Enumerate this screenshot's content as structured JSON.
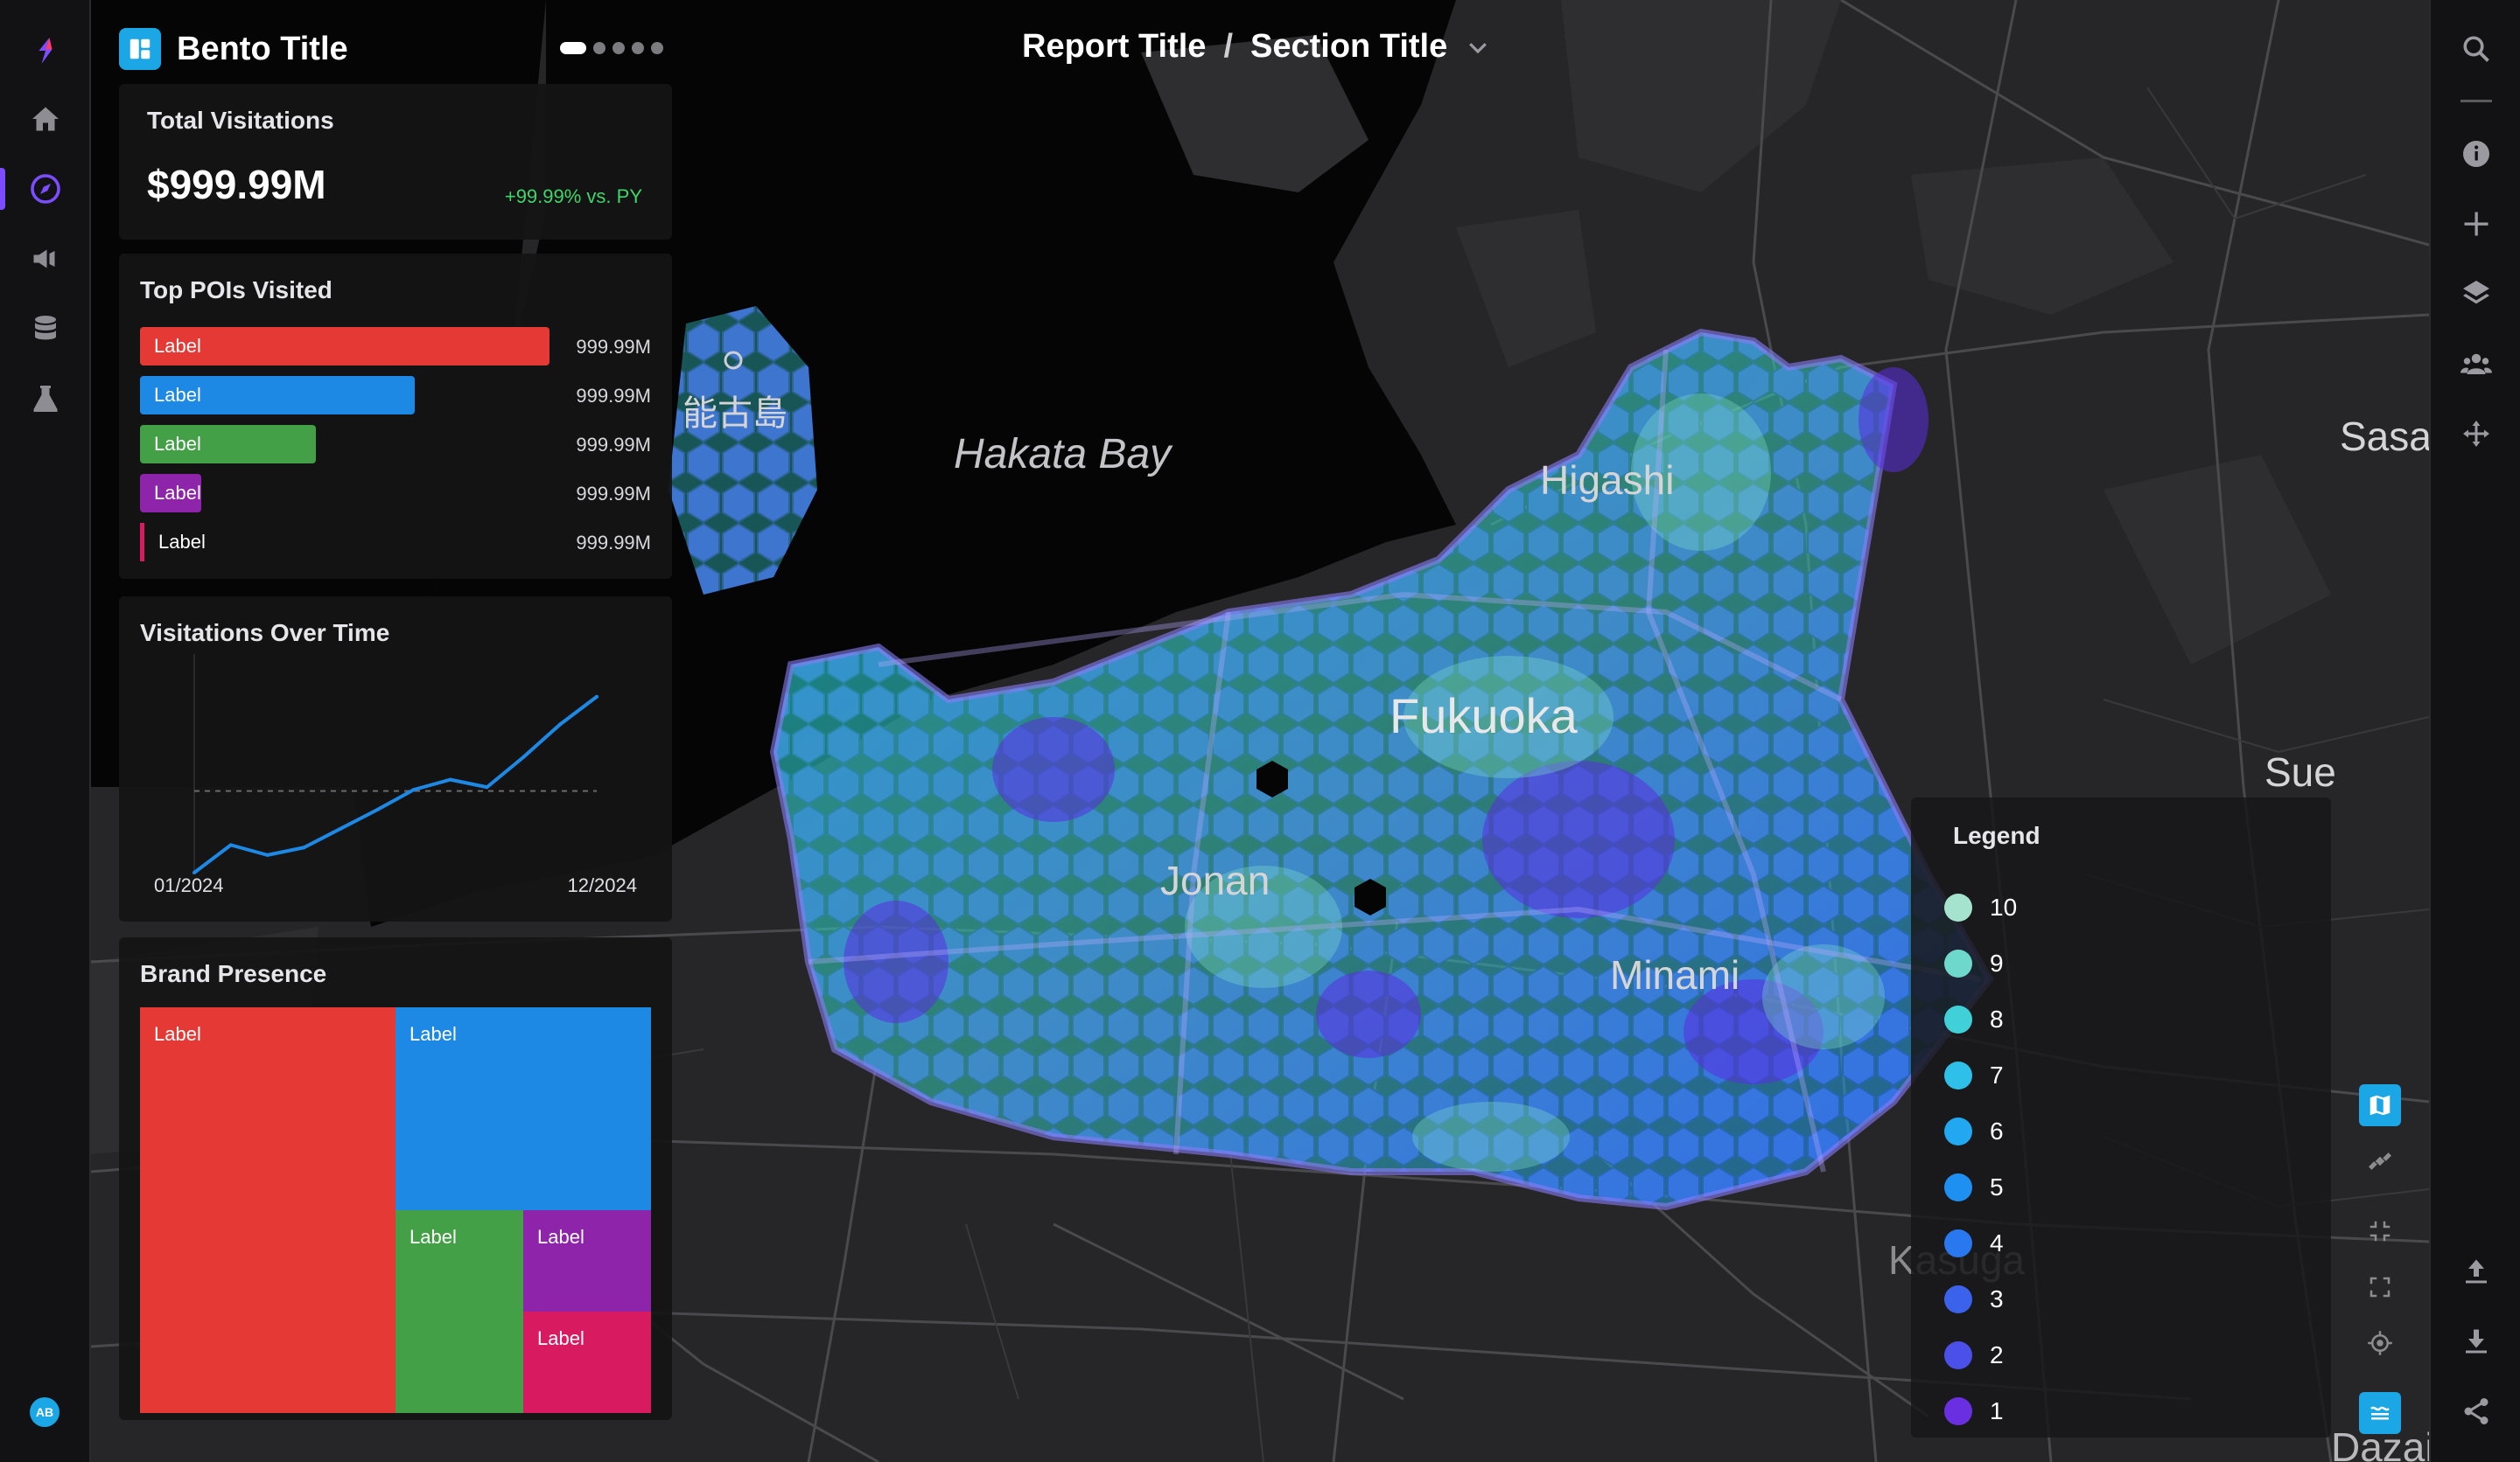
{
  "header": {
    "bento_title": "Bento Title",
    "report_title": "Report Title",
    "separator": "/",
    "section_title": "Section Title",
    "pager_count": 5,
    "pager_active": 1
  },
  "nav": {
    "left_icons": [
      "logo-icon",
      "home-icon",
      "compass-icon",
      "megaphone-icon",
      "database-icon",
      "flask-icon"
    ],
    "active": "compass-icon",
    "avatar": "AB",
    "right_icons": [
      "search-icon",
      "info-icon",
      "plus-icon",
      "layers-icon",
      "users-icon",
      "move-icon",
      "upload-icon",
      "download-icon",
      "share-icon"
    ]
  },
  "total_visits": {
    "title": "Total Visitations",
    "value": "$999.99M",
    "delta": "+99.99% vs. PY"
  },
  "top_pois": {
    "title": "Top POIs Visited",
    "items": [
      {
        "label": "Label",
        "value": "999.99M",
        "share": 1.0,
        "color": "#e53935"
      },
      {
        "label": "Label",
        "value": "999.99M",
        "share": 0.67,
        "color": "#1e88e5"
      },
      {
        "label": "Label",
        "value": "999.99M",
        "share": 0.43,
        "color": "#43a047"
      },
      {
        "label": "Label",
        "value": "999.99M",
        "share": 0.15,
        "color": "#8e24aa"
      },
      {
        "label": "Label",
        "value": "999.99M",
        "share": 0.01,
        "color": "#d81b60"
      }
    ]
  },
  "visits_over_time": {
    "title": "Visitations Over Time",
    "x_start": "01/2024",
    "x_end": "12/2024",
    "chart_data": {
      "type": "line",
      "x": [
        "01/2024",
        "02/2024",
        "03/2024",
        "04/2024",
        "05/2024",
        "06/2024",
        "07/2024",
        "08/2024",
        "09/2024",
        "10/2024",
        "11/2024",
        "12/2024"
      ],
      "values": [
        0,
        22,
        14,
        20,
        35,
        50,
        66,
        74,
        68,
        92,
        118,
        140
      ],
      "reference_line": 65,
      "ylim": [
        0,
        160
      ],
      "color": "#1e88e5"
    }
  },
  "brand_presence": {
    "title": "Brand Presence",
    "chart_data": {
      "type": "treemap",
      "items": [
        {
          "label": "Label",
          "color": "#e53935"
        },
        {
          "label": "Label",
          "color": "#1e88e5"
        },
        {
          "label": "Label",
          "color": "#43a047"
        },
        {
          "label": "Label",
          "color": "#8e24aa"
        },
        {
          "label": "Label",
          "color": "#d81b60"
        }
      ]
    }
  },
  "map": {
    "labels": {
      "bay": "Hakata Bay",
      "noko": "能古島",
      "higashi": "Higashi",
      "fukuoka": "Fukuoka",
      "jonan": "Jonan",
      "minami": "Minami",
      "sasa": "Sasa",
      "sue": "Sue",
      "kasuga": "Kasuga",
      "dazai": "Dazai"
    },
    "controls": [
      "map-view-icon",
      "satellite-icon",
      "collapse-icon",
      "expand-icon",
      "locate-icon",
      "legend-toggle-icon"
    ]
  },
  "legend": {
    "title": "Legend",
    "items": [
      {
        "label": "10",
        "color": "#a6e3cf"
      },
      {
        "label": "9",
        "color": "#6fd8cc"
      },
      {
        "label": "8",
        "color": "#3fd0d8"
      },
      {
        "label": "7",
        "color": "#2ec0e8"
      },
      {
        "label": "6",
        "color": "#22a8f0"
      },
      {
        "label": "5",
        "color": "#1e90f2"
      },
      {
        "label": "4",
        "color": "#2a78f0"
      },
      {
        "label": "3",
        "color": "#3a62ea"
      },
      {
        "label": "2",
        "color": "#4a50e8"
      },
      {
        "label": "1",
        "color": "#6a2fe0"
      }
    ]
  }
}
